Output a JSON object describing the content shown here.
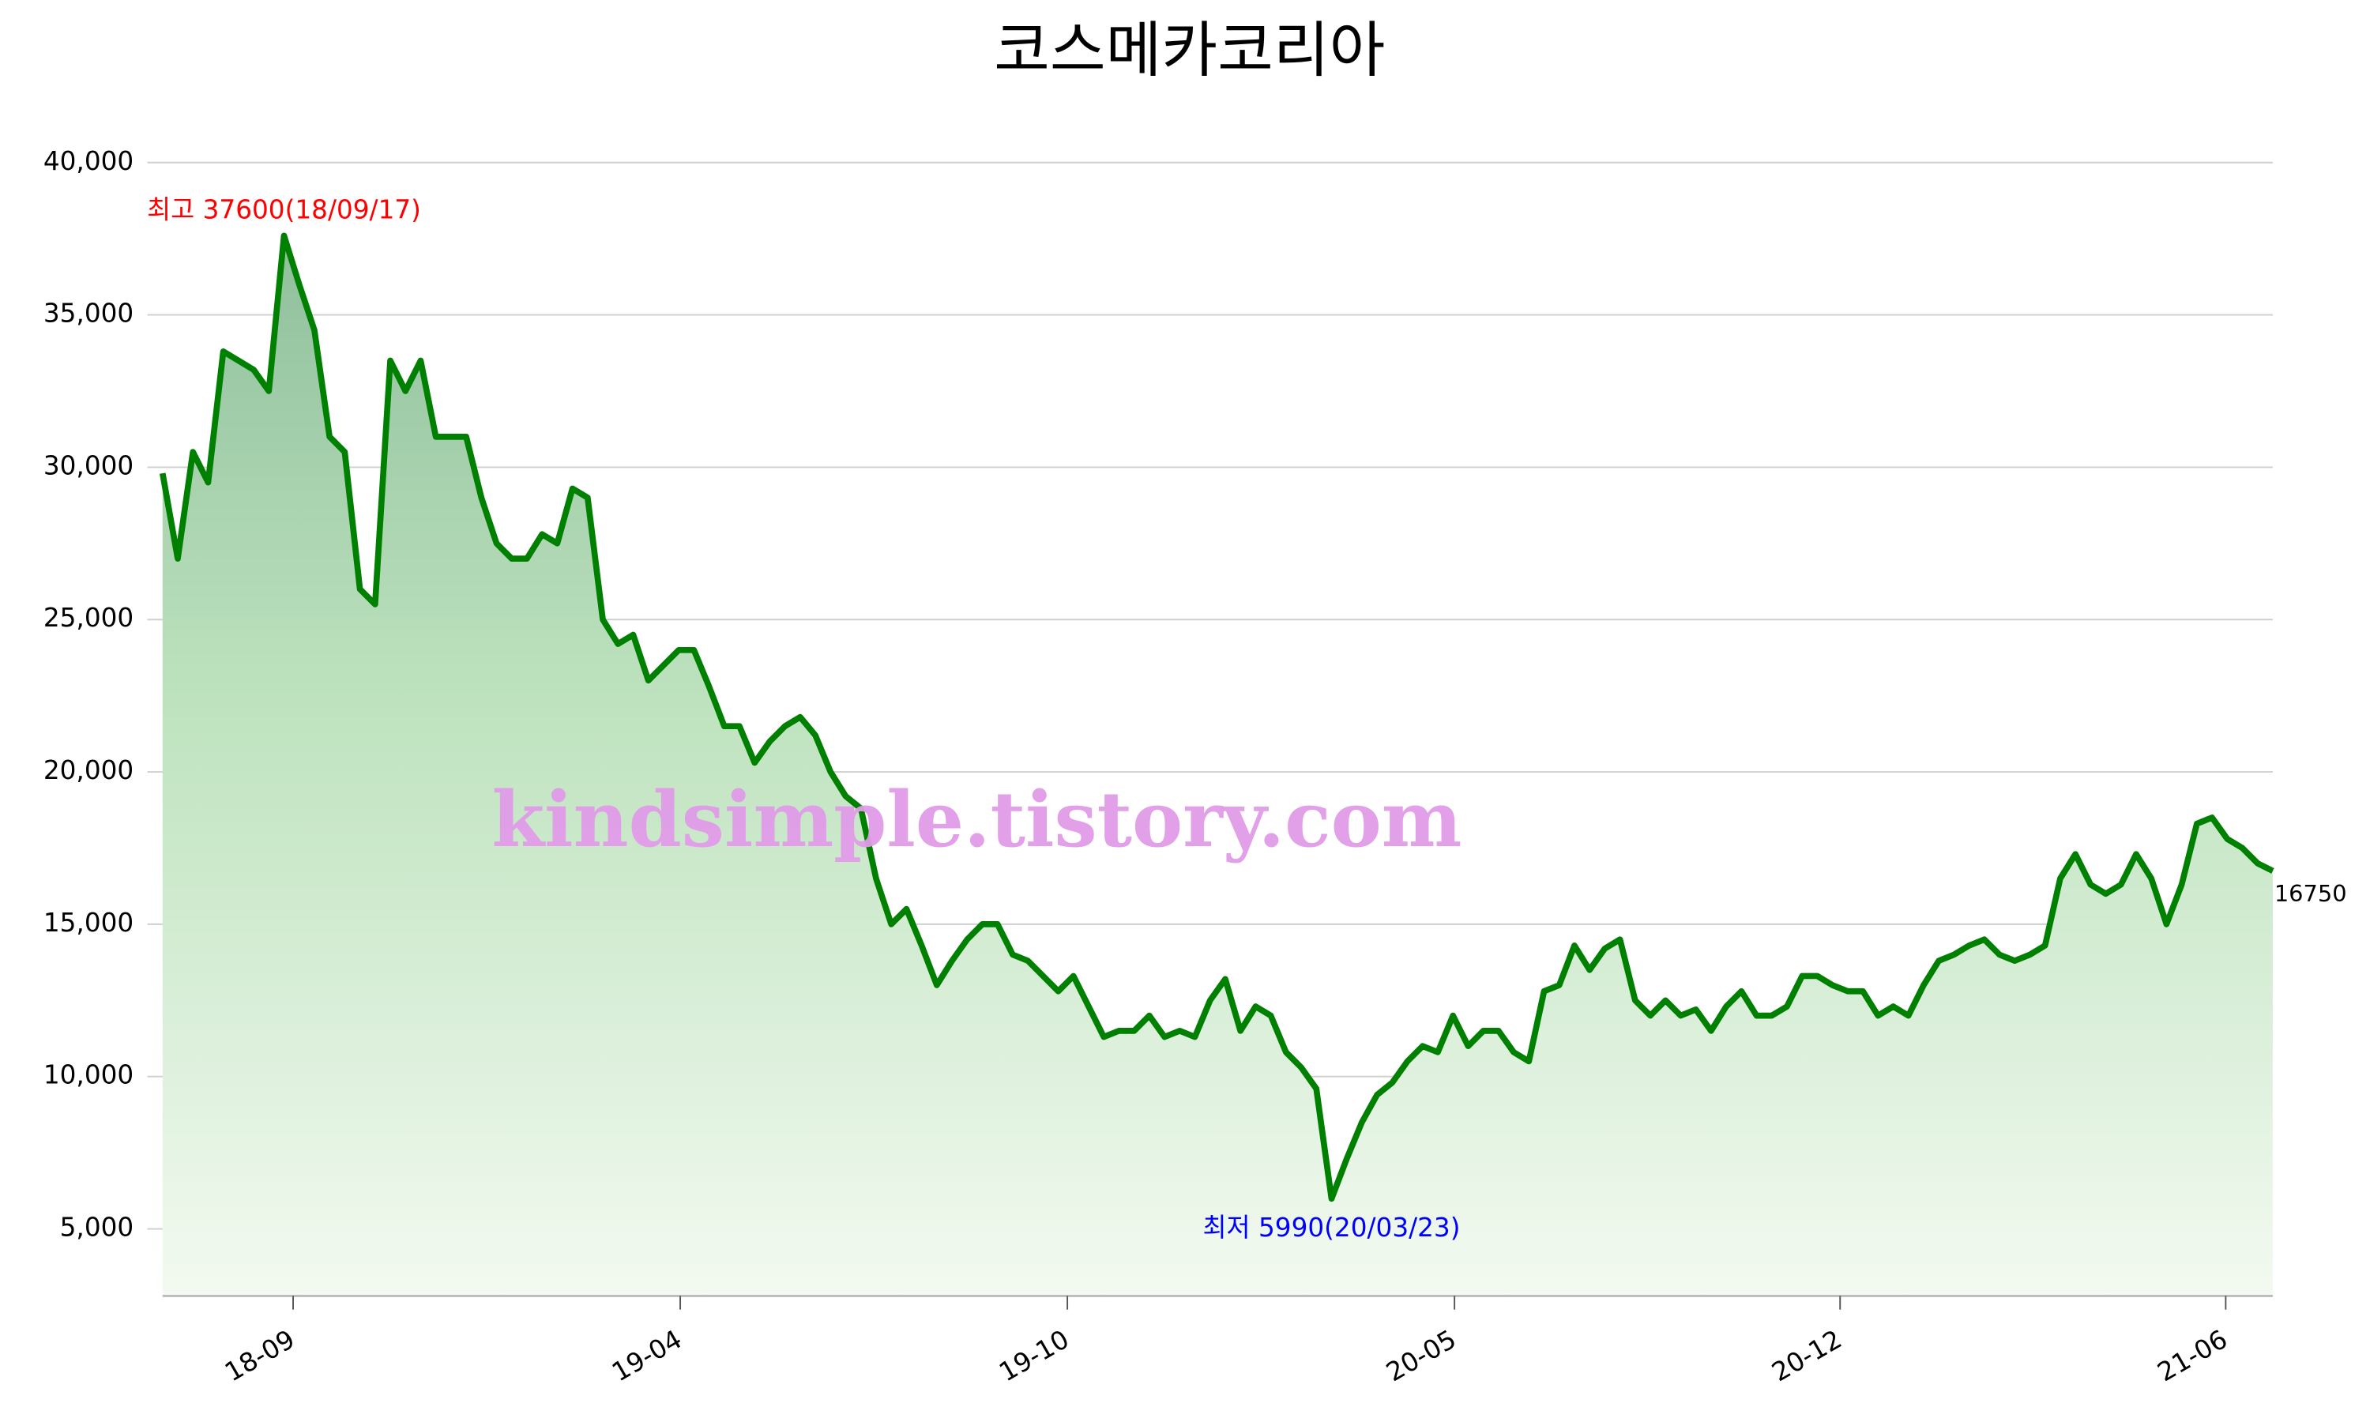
{
  "chart_data": {
    "type": "area",
    "title": "코스메카코리아",
    "watermark": "kindsimple.tistory.com",
    "annotations": {
      "high": "최고 37600(18/09/17)",
      "low": "최저 5990(20/03/23)",
      "last": "16750"
    },
    "color": "#008000",
    "high_color": "#ff0000",
    "low_color": "#0000ff",
    "grid": true,
    "ylim": [
      2800,
      40000
    ],
    "yticks": [
      {
        "value": 5000,
        "label": "5,000"
      },
      {
        "value": 10000,
        "label": "10,000"
      },
      {
        "value": 15000,
        "label": "15,000"
      },
      {
        "value": 20000,
        "label": "20,000"
      },
      {
        "value": 25000,
        "label": "25,000"
      },
      {
        "value": 30000,
        "label": "30,000"
      },
      {
        "value": 35000,
        "label": "35,000"
      },
      {
        "value": 40000,
        "label": "40,000"
      }
    ],
    "xticks": [
      {
        "value": 8.6,
        "label": "18-09"
      },
      {
        "value": 34.1,
        "label": "19-04"
      },
      {
        "value": 59.6,
        "label": "19-10"
      },
      {
        "value": 85.1,
        "label": "20-05"
      },
      {
        "value": 110.5,
        "label": "20-12"
      },
      {
        "value": 135.9,
        "label": "21-06"
      }
    ],
    "values": [
      29800,
      27000,
      30500,
      29500,
      33800,
      33500,
      33200,
      32500,
      37600,
      36000,
      34500,
      31000,
      30500,
      26000,
      25500,
      33500,
      32500,
      33500,
      31000,
      31000,
      31000,
      29000,
      27500,
      27000,
      27000,
      27800,
      27500,
      29300,
      29000,
      25000,
      24200,
      24500,
      23000,
      23500,
      24000,
      24000,
      22800,
      21500,
      21500,
      20300,
      21000,
      21500,
      21800,
      21200,
      20000,
      19200,
      18800,
      16500,
      15000,
      15500,
      14300,
      13000,
      13800,
      14500,
      15000,
      15000,
      14000,
      13800,
      13300,
      12800,
      13300,
      12300,
      11300,
      11500,
      11500,
      12000,
      11300,
      11500,
      11300,
      12500,
      13200,
      11500,
      12300,
      12000,
      10800,
      10300,
      9600,
      5990,
      7300,
      8500,
      9400,
      9800,
      10500,
      11000,
      10800,
      12000,
      11000,
      11500,
      11500,
      10800,
      10500,
      12800,
      13000,
      14300,
      13500,
      14200,
      14500,
      12500,
      12000,
      12500,
      12000,
      12200,
      11500,
      12300,
      12800,
      12000,
      12000,
      12300,
      13300,
      13300,
      13000,
      12800,
      12800,
      12000,
      12300,
      12000,
      13000,
      13800,
      14000,
      14300,
      14500,
      14000,
      13800,
      14000,
      14300,
      16500,
      17300,
      16300,
      16000,
      16300,
      17300,
      16500,
      15000,
      16300,
      18300,
      18500,
      17800,
      17500,
      17000,
      16750
    ]
  }
}
